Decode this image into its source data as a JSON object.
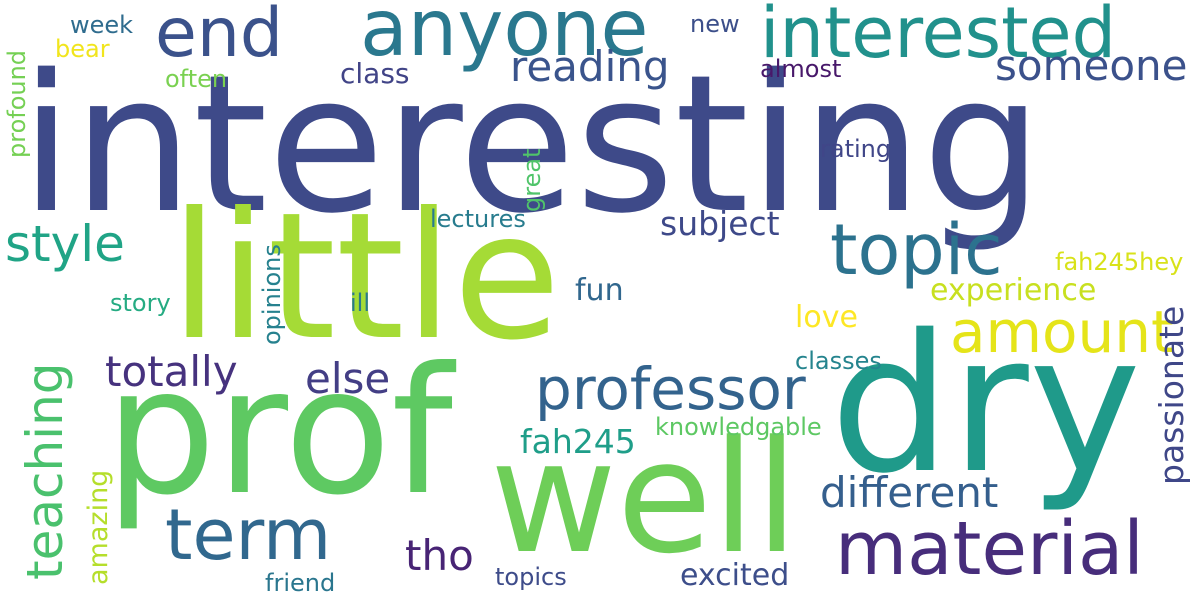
{
  "words": [
    {
      "text": "interesting",
      "color": "#3e4a89",
      "orientation": "horizontal"
    },
    {
      "text": "little",
      "color": "#a5db36",
      "orientation": "horizontal"
    },
    {
      "text": "dry",
      "color": "#1f9a8a",
      "orientation": "horizontal"
    },
    {
      "text": "prof",
      "color": "#5ec962",
      "orientation": "horizontal"
    },
    {
      "text": "well",
      "color": "#6ece58",
      "orientation": "horizontal"
    },
    {
      "text": "anyone",
      "color": "#2a788e",
      "orientation": "horizontal"
    },
    {
      "text": "interested",
      "color": "#21918c",
      "orientation": "horizontal"
    },
    {
      "text": "end",
      "color": "#3b528b",
      "orientation": "horizontal"
    },
    {
      "text": "material",
      "color": "#472d7b",
      "orientation": "horizontal"
    },
    {
      "text": "topic",
      "color": "#2c728e",
      "orientation": "horizontal"
    },
    {
      "text": "term",
      "color": "#31688e",
      "orientation": "horizontal"
    },
    {
      "text": "professor",
      "color": "#33638d",
      "orientation": "horizontal"
    },
    {
      "text": "amount",
      "color": "#e5e419",
      "orientation": "horizontal"
    },
    {
      "text": "style",
      "color": "#20a486",
      "orientation": "horizontal"
    },
    {
      "text": "teaching",
      "color": "#4ac16d",
      "orientation": "vertical"
    },
    {
      "text": "reading",
      "color": "#3a548c",
      "orientation": "horizontal"
    },
    {
      "text": "someone",
      "color": "#3b518b",
      "orientation": "horizontal"
    },
    {
      "text": "different",
      "color": "#355f8d",
      "orientation": "horizontal"
    },
    {
      "text": "totally",
      "color": "#46327e",
      "orientation": "horizontal"
    },
    {
      "text": "else",
      "color": "#433e85",
      "orientation": "horizontal"
    },
    {
      "text": "tho",
      "color": "#482475",
      "orientation": "horizontal"
    },
    {
      "text": "passionate",
      "color": "#3f4788",
      "orientation": "vertical"
    },
    {
      "text": "fah245",
      "color": "#1f9e89",
      "orientation": "horizontal"
    },
    {
      "text": "subject",
      "color": "#3e4989",
      "orientation": "horizontal"
    },
    {
      "text": "experience",
      "color": "#c8e020",
      "orientation": "horizontal"
    },
    {
      "text": "love",
      "color": "#fde725",
      "orientation": "horizontal"
    },
    {
      "text": "excited",
      "color": "#3d4e8a",
      "orientation": "horizontal"
    },
    {
      "text": "fun",
      "color": "#31678e",
      "orientation": "horizontal"
    },
    {
      "text": "class",
      "color": "#414487",
      "orientation": "horizontal"
    },
    {
      "text": "amazing",
      "color": "#b5de2b",
      "orientation": "vertical"
    },
    {
      "text": "fah245hey",
      "color": "#d8e219",
      "orientation": "horizontal"
    },
    {
      "text": "lectures",
      "color": "#287c8e",
      "orientation": "horizontal"
    },
    {
      "text": "classes",
      "color": "#25848e",
      "orientation": "horizontal"
    },
    {
      "text": "topics",
      "color": "#3e4c8a",
      "orientation": "horizontal"
    },
    {
      "text": "knowledgable",
      "color": "#5dc863",
      "orientation": "horizontal"
    },
    {
      "text": "rating",
      "color": "#404688",
      "orientation": "horizontal"
    },
    {
      "text": "opinions",
      "color": "#26818e",
      "orientation": "vertical"
    },
    {
      "text": "friend",
      "color": "#2a768e",
      "orientation": "horizontal"
    },
    {
      "text": "story",
      "color": "#25ab82",
      "orientation": "horizontal"
    },
    {
      "text": "ill",
      "color": "#29798e",
      "orientation": "horizontal"
    },
    {
      "text": "almost",
      "color": "#48186a",
      "orientation": "horizontal"
    },
    {
      "text": "week",
      "color": "#2f6c8e",
      "orientation": "horizontal"
    },
    {
      "text": "bear",
      "color": "#f1e51d",
      "orientation": "horizontal"
    },
    {
      "text": "often",
      "color": "#7ad151",
      "orientation": "horizontal"
    },
    {
      "text": "new",
      "color": "#3c4f8a",
      "orientation": "horizontal"
    },
    {
      "text": "profound",
      "color": "#75d054",
      "orientation": "vertical"
    },
    {
      "text": "great",
      "color": "#50c46a",
      "orientation": "vertical"
    }
  ]
}
